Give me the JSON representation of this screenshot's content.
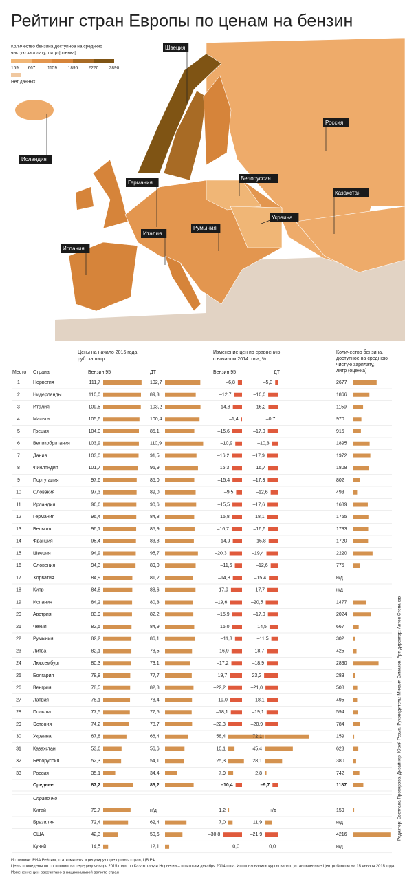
{
  "title": "Рейтинг стран Европы по ценам на бензин",
  "legend": {
    "title": [
      "Количество бензина,доступное на среднюю",
      "чистую зарплату, литр (оценка)"
    ],
    "ticks": [
      "159",
      "667",
      "1159",
      "1895",
      "2220",
      "2890"
    ],
    "colors": [
      "#f0b676",
      "#e3964f",
      "#d6843a",
      "#a86b25",
      "#7f5414"
    ],
    "no_data": "Нет данных"
  },
  "map_labels": [
    "Швеция",
    "Исландия",
    "Германия",
    "Белоруссия",
    "Россия",
    "Казахстан",
    "Украина",
    "Румыния",
    "Италия",
    "Испания"
  ],
  "table": {
    "group_price": [
      "Цены на начало 2015 года,",
      "руб. за литр"
    ],
    "group_change": [
      "Изменение цен по сравнению",
      "с началом 2014 года, %"
    ],
    "group_qty": [
      "Количество бензина,",
      "доступное на среднюю",
      "чистую зарплату,",
      "литр (оценка)"
    ],
    "columns": [
      "Место",
      "Страна",
      "Бензин 95",
      "ДТ",
      "Бензин 95",
      "ДТ"
    ],
    "rows": [
      [
        "1",
        "Норвегия",
        "111,7",
        "102,7",
        "–6,8",
        "–5,3",
        "2677"
      ],
      [
        "2",
        "Нидерланды",
        "110,0",
        "89,3",
        "–12,7",
        "–16,6",
        "1866"
      ],
      [
        "3",
        "Италия",
        "109,5",
        "103,2",
        "–14,8",
        "–16,2",
        "1159"
      ],
      [
        "4",
        "Мальта",
        "105,6",
        "100,4",
        "–1,4",
        "–0,7",
        "970"
      ],
      [
        "5",
        "Греция",
        "104,0",
        "85,1",
        "–15,6",
        "–17,0",
        "915"
      ],
      [
        "6",
        "Великобритания",
        "103,9",
        "110,9",
        "–10,9",
        "–10,3",
        "1895"
      ],
      [
        "7",
        "Дания",
        "103,0",
        "91,5",
        "–16,2",
        "–17,9",
        "1972"
      ],
      [
        "8",
        "Финляндия",
        "101,7",
        "95,9",
        "–16,3",
        "–16,7",
        "1808"
      ],
      [
        "9",
        "Португалия",
        "97,6",
        "85,0",
        "–15,4",
        "–17,3",
        "802"
      ],
      [
        "10",
        "Словакия",
        "97,3",
        "89,0",
        "–9,5",
        "–12,6",
        "493"
      ],
      [
        "11",
        "Ирландия",
        "96,6",
        "90,6",
        "–15,5",
        "–17,6",
        "1689"
      ],
      [
        "12",
        "Германия",
        "96,4",
        "84,8",
        "–15,8",
        "–18,1",
        "1755"
      ],
      [
        "13",
        "Бельгия",
        "96,1",
        "85,9",
        "–16,7",
        "–16,6",
        "1733"
      ],
      [
        "14",
        "Франция",
        "95,4",
        "83,8",
        "–14,9",
        "–15,8",
        "1720"
      ],
      [
        "15",
        "Швеция",
        "94,9",
        "95,7",
        "–20,3",
        "–19,4",
        "2220"
      ],
      [
        "16",
        "Словения",
        "94,3",
        "89,0",
        "–11,6",
        "–12,6",
        "775"
      ],
      [
        "17",
        "Хорватия",
        "84,9",
        "81,2",
        "–14,8",
        "–15,4",
        "н/д"
      ],
      [
        "18",
        "Кипр",
        "84,8",
        "88,6",
        "–17,9",
        "–17,7",
        "н/д"
      ],
      [
        "19",
        "Испания",
        "84,2",
        "80,3",
        "–19,6",
        "–20,5",
        "1477"
      ],
      [
        "20",
        "Австрия",
        "83,9",
        "82,2",
        "–15,9",
        "–17,0",
        "2024"
      ],
      [
        "21",
        "Чехия",
        "82,5",
        "84,9",
        "–16,0",
        "–14,5",
        "667"
      ],
      [
        "22",
        "Румыния",
        "82,2",
        "86,1",
        "–11,3",
        "–11,5",
        "302"
      ],
      [
        "23",
        "Литва",
        "82,1",
        "78,5",
        "–16,9",
        "–18,7",
        "425"
      ],
      [
        "24",
        "Люксембург",
        "80,3",
        "73,1",
        "–17,2",
        "–18,9",
        "2890"
      ],
      [
        "25",
        "Болгария",
        "78,8",
        "77,7",
        "–19,7",
        "–23,2",
        "283"
      ],
      [
        "26",
        "Венгрия",
        "78,5",
        "82,8",
        "–22,2",
        "–21,0",
        "508"
      ],
      [
        "27",
        "Латвия",
        "78,1",
        "78,4",
        "–19,0",
        "–18,1",
        "495"
      ],
      [
        "28",
        "Польша",
        "77,5",
        "77,5",
        "–18,1",
        "–19,1",
        "594"
      ],
      [
        "29",
        "Эстония",
        "74,2",
        "78,7",
        "–22,3",
        "–20,9",
        "784"
      ],
      [
        "30",
        "Украина",
        "67,8",
        "66,4",
        "58,4",
        "72,1",
        "159"
      ],
      [
        "31",
        "Казахстан",
        "53,6",
        "56,6",
        "10,1",
        "45,4",
        "623"
      ],
      [
        "32",
        "Белоруссия",
        "52,3",
        "54,1",
        "25,3",
        "28,1",
        "380"
      ],
      [
        "33",
        "Россия",
        "35,1",
        "34,4",
        "7,9",
        "2,8",
        "742"
      ]
    ],
    "average": [
      "Среднее",
      "87,2",
      "83,2",
      "–10,4",
      "–9,7",
      "1187"
    ],
    "reference": {
      "title": "Справочно",
      "rows": [
        [
          "Китай",
          "79,7",
          "н/д",
          "1,2",
          "н/д",
          "159"
        ],
        [
          "Бразилия",
          "72,4",
          "62,4",
          "7,0",
          "11,9",
          "н/д"
        ],
        [
          "США",
          "42,3",
          "50,6",
          "–30,8",
          "–21,9",
          "4216"
        ],
        [
          "Кувейт",
          "14,5",
          "12,1",
          "0,0",
          "0,0",
          "н/д"
        ]
      ]
    }
  },
  "footer": [
    "Источники: РИА Рейтинг, статкомитеты и регулирующие органы стран, ЦБ РФ",
    "Цены приведены по состоянию на середину января 2015 года, по Казахстану и Норвегии – по итогам декабря 2014 года. Использовались курсы валют, установленные Центробанком на 15 января 2015 года.",
    "Изменение цен рассчитано в национальной валюте стран"
  ],
  "credits": "Редактор: Светлана Прохорова. Дизайнер: Юрий Резых. Руководитель: Михаил Симаков. Арт-директор: Антон Степанов"
}
